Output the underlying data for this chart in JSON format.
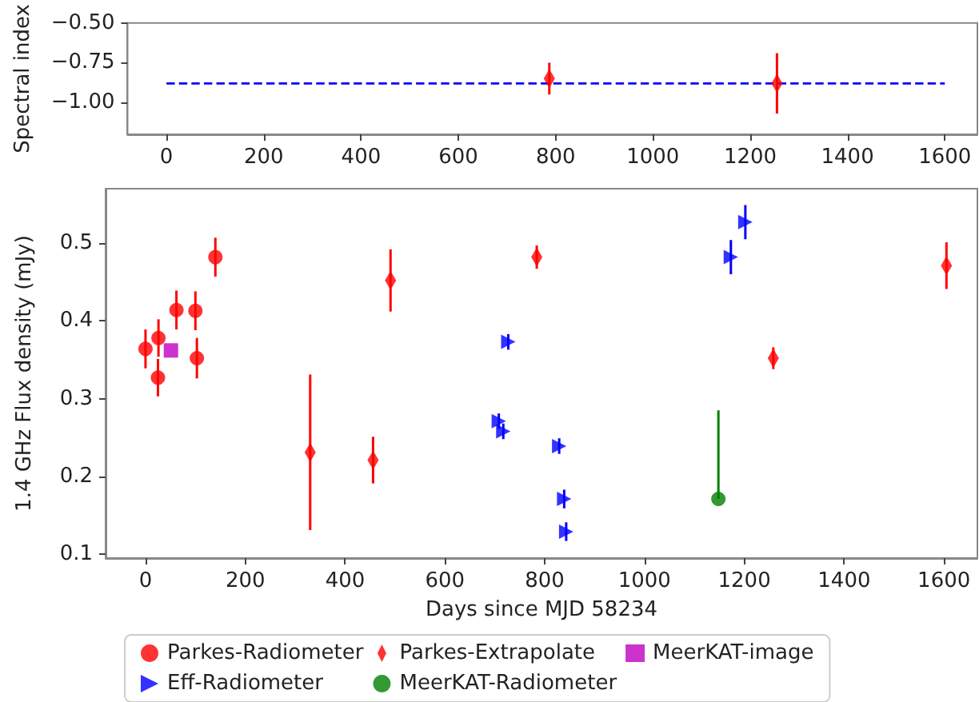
{
  "chart_data": [
    {
      "type": "scatter",
      "ylabel": "Spectral index",
      "xlim": [
        -80,
        1667
      ],
      "xticks": [
        0,
        200,
        400,
        600,
        800,
        1000,
        1200,
        1400,
        1600
      ],
      "ylim": [
        -1.2,
        -0.5
      ],
      "yticks": [
        {
          "value": -0.5,
          "label": "−0.50"
        },
        {
          "value": -0.75,
          "label": "−0.75"
        },
        {
          "value": -1.0,
          "label": "−1.00"
        }
      ],
      "grid": false,
      "legend": false,
      "series": [
        {
          "color": "#ff0000",
          "marker": "diamond",
          "x": [
            787,
            1255
          ],
          "values": [
            -0.85,
            -0.88
          ],
          "errors": [
            0.1,
            0.19
          ]
        },
        {
          "type": "line",
          "color": "#0000ff",
          "line_style": "dashed",
          "marker": "none",
          "x": [
            0,
            1600
          ],
          "values": [
            -0.88,
            -0.88
          ]
        }
      ]
    },
    {
      "type": "scatter",
      "xlabel": "Days since MJD 58234",
      "ylabel": "1.4 GHz Flux density (mJy)",
      "xlim": [
        -80,
        1667
      ],
      "xticks": [
        0,
        200,
        400,
        600,
        800,
        1000,
        1200,
        1400,
        1600
      ],
      "ylim": [
        0.095,
        0.57
      ],
      "yticks": [
        0.1,
        0.2,
        0.3,
        0.4,
        0.5
      ],
      "grid": false,
      "legend": "bottom",
      "series": [
        {
          "name": "Parkes-Radiometer",
          "color": "#ff0000",
          "marker": "circle",
          "x": [
            0,
            26,
            25,
            62,
            100,
            103,
            140
          ],
          "values": [
            0.364,
            0.378,
            0.327,
            0.414,
            0.413,
            0.352,
            0.482
          ],
          "errors": [
            0.025,
            0.024,
            0.024,
            0.025,
            0.025,
            0.026,
            0.025
          ]
        },
        {
          "name": "Eff-Radiometer",
          "color": "#0000ff",
          "marker": "triangle",
          "x": [
            708,
            717,
            727,
            829,
            839,
            843,
            1173,
            1202
          ],
          "values": [
            0.271,
            0.258,
            0.373,
            0.239,
            0.171,
            0.129,
            0.482,
            0.527
          ],
          "errors": [
            0.01,
            0.01,
            0.01,
            0.01,
            0.012,
            0.012,
            0.022,
            0.022
          ]
        },
        {
          "name": "Parkes-Extrapolate",
          "color": "#ff0000",
          "marker": "diamond",
          "x": [
            330,
            456,
            491,
            784,
            1258,
            1605
          ],
          "values": [
            0.231,
            0.221,
            0.452,
            0.482,
            0.352,
            0.471
          ],
          "errors": [
            0.1,
            0.03,
            0.04,
            0.015,
            0.014,
            0.03
          ]
        },
        {
          "name": "MeerKAT-Radiometer",
          "color": "#008000",
          "marker": "circle",
          "x": [
            1148
          ],
          "values": [
            0.171
          ],
          "errors": [
            [
              0.171,
              0.285
            ]
          ]
        },
        {
          "name": "MeerKAT-image",
          "color": "#bf00bf",
          "marker": "square",
          "x": [
            51
          ],
          "values": [
            0.362
          ]
        }
      ]
    }
  ]
}
